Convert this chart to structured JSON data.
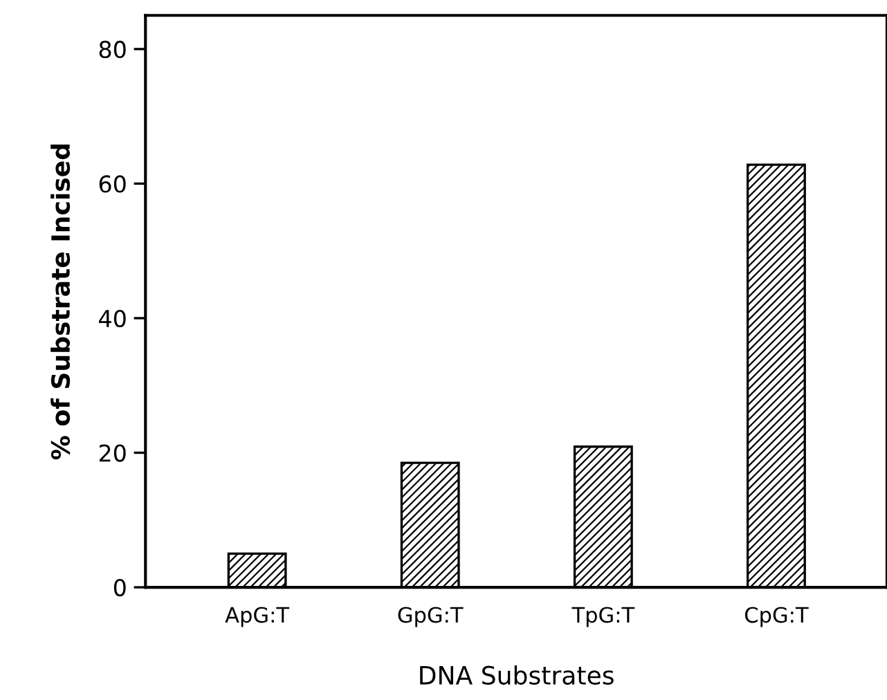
{
  "chart_data": {
    "type": "bar",
    "xlabel": "DNA Substrates",
    "ylabel": "% of Substrate Incised",
    "categories": [
      "ApG:T",
      "GpG:T",
      "TpG:T",
      "CpG:T"
    ],
    "values": [
      5,
      18.5,
      20.9,
      62.8
    ],
    "color": "#000000",
    "ylim": [
      0,
      85
    ],
    "yticks": [
      0,
      20,
      40,
      60,
      80
    ],
    "grid": false
  }
}
